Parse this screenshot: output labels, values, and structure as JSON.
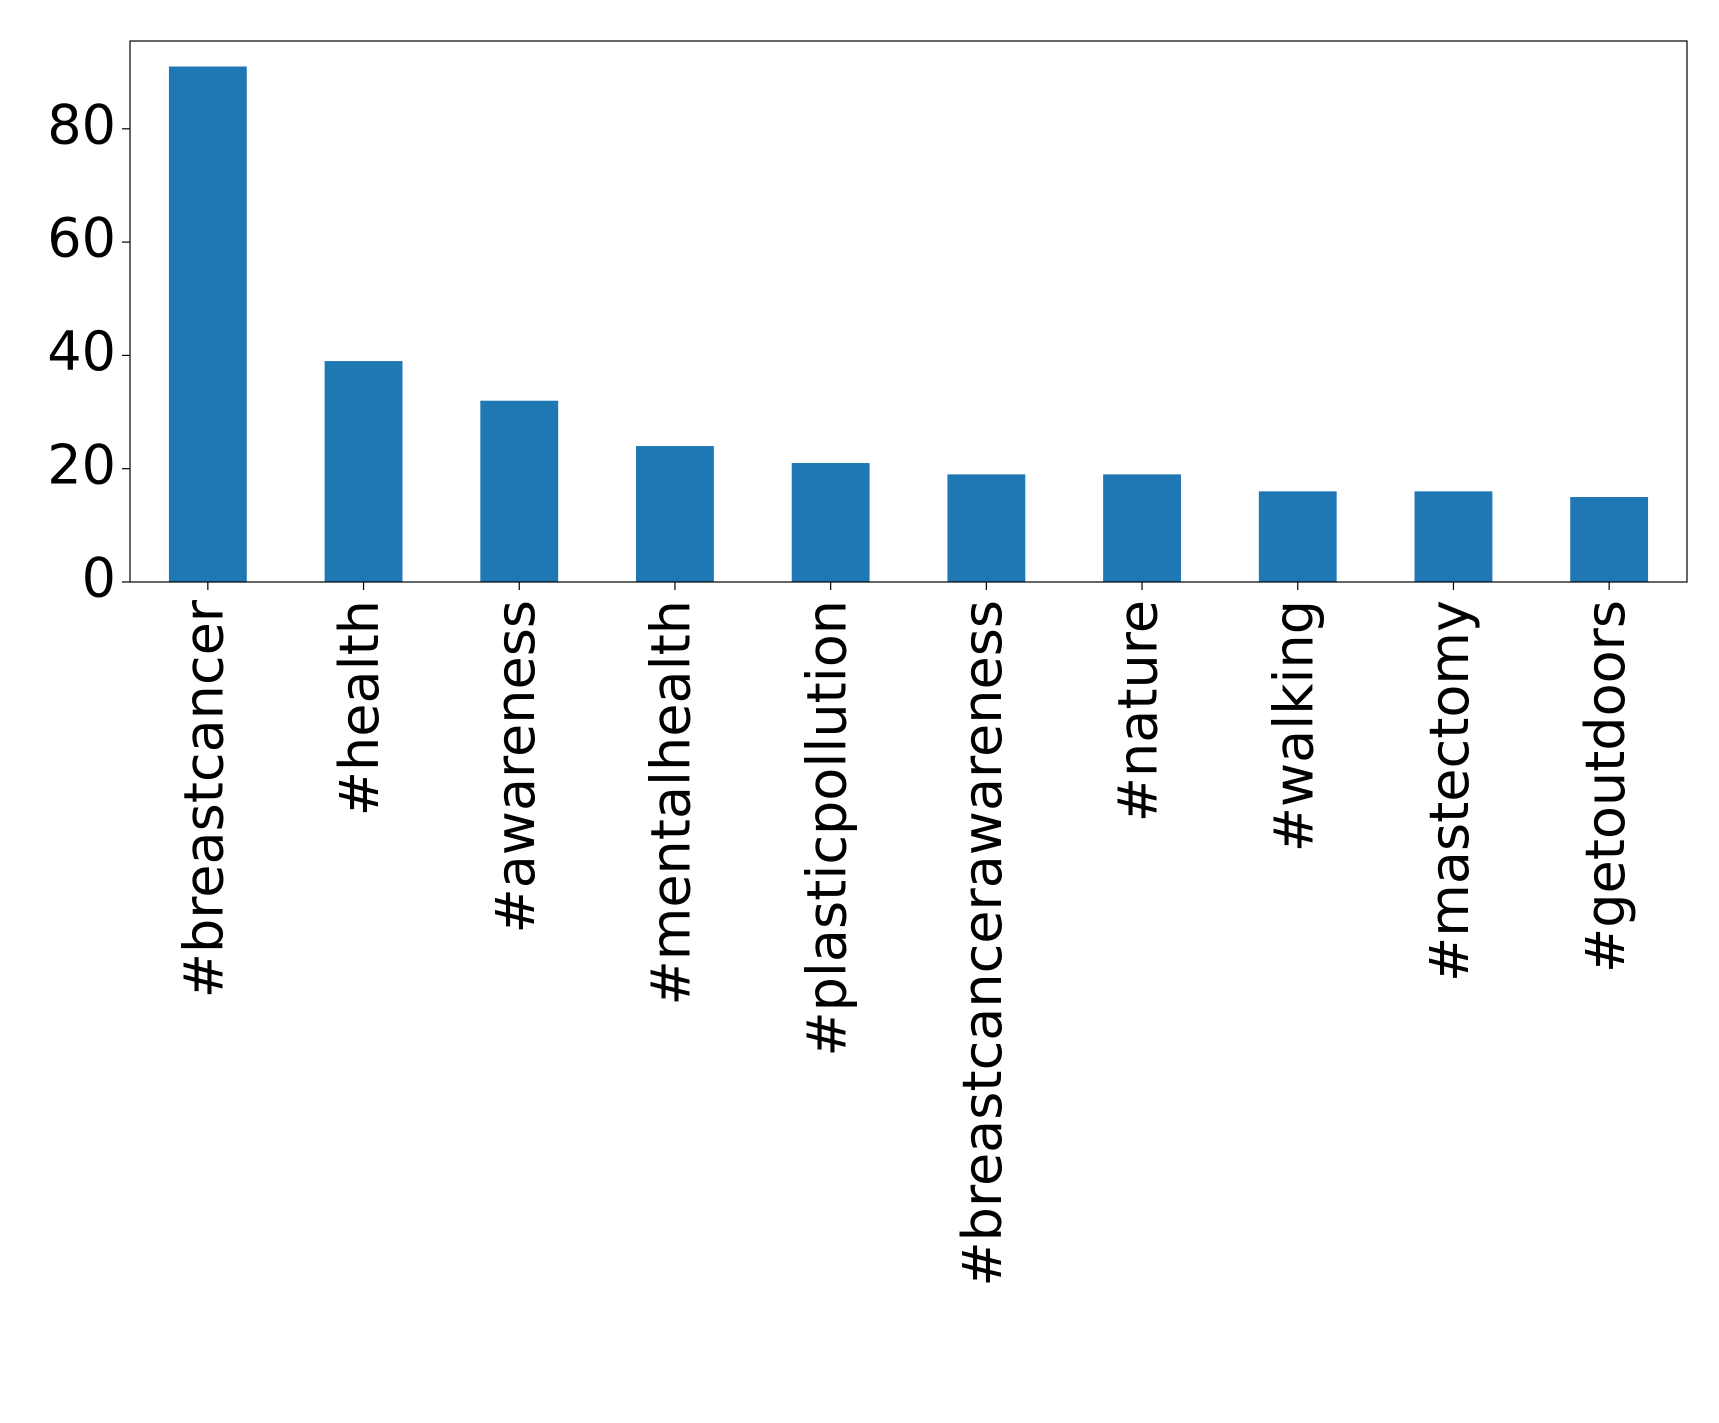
{
  "chart_data": {
    "type": "bar",
    "categories": [
      "#breastcancer",
      "#health",
      "#awareness",
      "#mentalhealth",
      "#plasticpollution",
      "#breastcancerawareness",
      "#nature",
      "#walking",
      "#mastectomy",
      "#getoutdoors"
    ],
    "values": [
      91,
      39,
      32,
      24,
      21,
      19,
      19,
      16,
      16,
      15
    ],
    "color": "#1f77b4",
    "ylim": [
      0,
      95.5
    ],
    "yticks": [
      0,
      20,
      40,
      60,
      80
    ],
    "grid": false
  }
}
